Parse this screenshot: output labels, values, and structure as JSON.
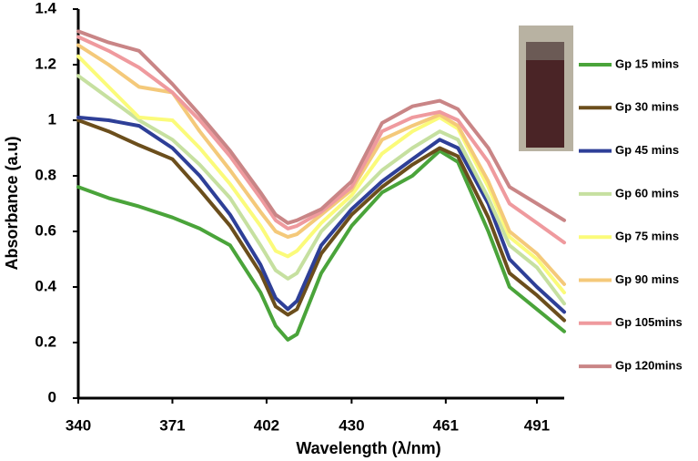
{
  "chart_data": {
    "type": "line",
    "x_label": "Wavelength (λ/nm)",
    "y_label": "Absorbance (a.u)",
    "x": [
      340,
      350,
      360,
      371,
      380,
      390,
      400,
      405,
      409,
      412,
      420,
      430,
      440,
      450,
      459,
      465,
      475,
      482,
      491,
      500
    ],
    "xlim": [
      340,
      500
    ],
    "xticks": [
      340,
      371,
      402,
      430,
      461,
      491
    ],
    "ylim": [
      0,
      1.4
    ],
    "yticks": [
      0,
      0.2,
      0.4,
      0.6,
      0.8,
      1,
      1.2,
      1.4
    ],
    "grid": false,
    "legend": "right",
    "series": [
      {
        "name": "Gp 15 mins",
        "color": "#4aa43a",
        "values": [
          0.76,
          0.72,
          0.69,
          0.65,
          0.61,
          0.55,
          0.38,
          0.26,
          0.21,
          0.23,
          0.45,
          0.62,
          0.74,
          0.8,
          0.89,
          0.85,
          0.6,
          0.4,
          0.32,
          0.24
        ]
      },
      {
        "name": "Gp 30 mins",
        "color": "#6b4e1c",
        "values": [
          1.0,
          0.96,
          0.91,
          0.86,
          0.75,
          0.62,
          0.45,
          0.33,
          0.3,
          0.32,
          0.52,
          0.66,
          0.76,
          0.84,
          0.9,
          0.87,
          0.65,
          0.45,
          0.37,
          0.28
        ]
      },
      {
        "name": "Gp 45 mins",
        "color": "#2e3f97",
        "values": [
          1.01,
          1.0,
          0.98,
          0.9,
          0.8,
          0.66,
          0.48,
          0.36,
          0.32,
          0.35,
          0.55,
          0.68,
          0.78,
          0.86,
          0.93,
          0.9,
          0.7,
          0.5,
          0.4,
          0.31
        ]
      },
      {
        "name": "Gp 60 mins",
        "color": "#c6e0a0",
        "values": [
          1.16,
          1.08,
          1.0,
          0.93,
          0.84,
          0.72,
          0.55,
          0.46,
          0.43,
          0.45,
          0.6,
          0.71,
          0.82,
          0.9,
          0.96,
          0.93,
          0.72,
          0.55,
          0.47,
          0.34
        ]
      },
      {
        "name": "Gp 75 mins",
        "color": "#fbfb7a",
        "values": [
          1.23,
          1.12,
          1.01,
          1.0,
          0.9,
          0.77,
          0.62,
          0.53,
          0.51,
          0.53,
          0.63,
          0.73,
          0.88,
          0.96,
          1.01,
          0.97,
          0.76,
          0.58,
          0.5,
          0.38
        ]
      },
      {
        "name": "Gp 90 mins",
        "color": "#f4c97a",
        "values": [
          1.27,
          1.2,
          1.12,
          1.1,
          0.96,
          0.82,
          0.67,
          0.6,
          0.58,
          0.59,
          0.66,
          0.75,
          0.93,
          0.98,
          1.02,
          0.98,
          0.78,
          0.6,
          0.52,
          0.41
        ]
      },
      {
        "name": "Gp 105mins",
        "color": "#ef9a9e",
        "values": [
          1.3,
          1.25,
          1.19,
          1.1,
          1.0,
          0.87,
          0.72,
          0.64,
          0.61,
          0.62,
          0.67,
          0.76,
          0.96,
          1.01,
          1.03,
          1.0,
          0.85,
          0.7,
          0.63,
          0.56
        ]
      },
      {
        "name": "Gp 120mins",
        "color": "#c98586",
        "values": [
          1.32,
          1.28,
          1.25,
          1.13,
          1.02,
          0.89,
          0.74,
          0.66,
          0.63,
          0.64,
          0.68,
          0.78,
          0.99,
          1.05,
          1.07,
          1.04,
          0.9,
          0.76,
          0.7,
          0.64
        ]
      }
    ]
  }
}
